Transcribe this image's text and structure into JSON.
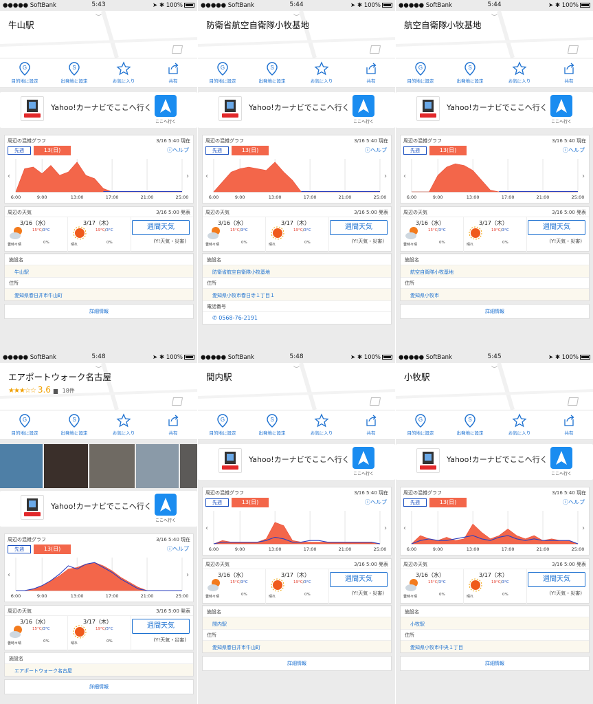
{
  "shared": {
    "status": {
      "carrier": "●●●●● SoftBank",
      "battery": "100%"
    },
    "actions": {
      "dest": "目的地に設定",
      "origin": "出発地に設定",
      "fav": "お気に入り",
      "share": "共有"
    },
    "navi": {
      "text": "Yahoo!カーナビでここへ行く",
      "go": "ここへ行く"
    },
    "congestion": {
      "title": "周辺の混雑グラフ",
      "timestamp": "3/16 5:40 現在",
      "prev": "先週",
      "day": "13(日)",
      "help": "ヘルプ",
      "xticks": [
        "6:00",
        "9:00",
        "13:00",
        "17:00",
        "21:00",
        "25:00"
      ]
    },
    "weather": {
      "title": "周辺の天気",
      "timestamp": "3/16 5:00 発表",
      "d1": {
        "date": "3/16（水）",
        "hi": "15°C",
        "lo": "3°C",
        "cond": "曇時々晴",
        "pop": "0%"
      },
      "d2": {
        "date": "3/17（木）",
        "hi": "19°C",
        "lo": "3°C",
        "cond": "晴れ",
        "pop": "0%"
      },
      "week_button": "週間天気",
      "week_sub": "(Y!天気・災害)"
    },
    "info": {
      "facility": "施設名",
      "address": "住所",
      "phone": "電話番号"
    },
    "detail_link": "詳細情報"
  },
  "panels": [
    {
      "time": "5:43",
      "title": "牛山駅",
      "facility": "牛山駅",
      "address": "愛知県春日井市牛山町"
    },
    {
      "time": "5:44",
      "title": "防衛省航空自衛隊小牧基地",
      "facility": "防衛省航空自衛隊小牧基地",
      "address": "愛知県小牧市春日寺１丁目１",
      "phone": "0568-76-2191"
    },
    {
      "time": "5:44",
      "title": "航空自衛隊小牧基地",
      "facility": "航空自衛隊小牧基地",
      "address": "愛知県小牧市"
    },
    {
      "time": "5:48",
      "title": "エアポートウォーク名古屋",
      "rating_stars": "★★★☆☆",
      "rating_score": "3.6",
      "reviews": "18件",
      "facility": "エアポートウォーク名古屋",
      "address": ""
    },
    {
      "time": "5:48",
      "title": "間内駅",
      "facility": "間内駅",
      "address": "愛知県春日井市牛山町"
    },
    {
      "time": "5:45",
      "title": "小牧駅",
      "facility": "小牧駅",
      "address": "愛知県小牧市中央１丁目"
    }
  ],
  "chart_data": [
    {
      "type": "area",
      "panel": "牛山駅",
      "x": [
        "6:00",
        "7:00",
        "8:00",
        "9:00",
        "10:00",
        "11:00",
        "12:00",
        "13:00",
        "14:00",
        "15:00",
        "16:00",
        "17:00",
        "18:00",
        "19:00",
        "20:00",
        "21:00",
        "22:00",
        "23:00",
        "24:00",
        "25:00"
      ],
      "series": [
        {
          "values": [
            0,
            28,
            30,
            22,
            32,
            20,
            24,
            36,
            20,
            16,
            4,
            0,
            0,
            0,
            0,
            0,
            0,
            0,
            0,
            0
          ]
        }
      ],
      "ylim": [
        0,
        40
      ]
    },
    {
      "type": "area",
      "panel": "防衛省航空自衛隊小牧基地",
      "x": [
        "6:00",
        "7:00",
        "8:00",
        "9:00",
        "10:00",
        "11:00",
        "12:00",
        "13:00",
        "14:00",
        "15:00",
        "16:00",
        "17:00",
        "18:00",
        "19:00",
        "20:00",
        "21:00",
        "22:00",
        "23:00",
        "24:00",
        "25:00"
      ],
      "series": [
        {
          "values": [
            0,
            12,
            24,
            28,
            30,
            28,
            26,
            36,
            24,
            14,
            0,
            0,
            0,
            0,
            0,
            0,
            0,
            0,
            0,
            0
          ]
        }
      ],
      "ylim": [
        0,
        40
      ]
    },
    {
      "type": "area",
      "panel": "航空自衛隊小牧基地",
      "x": [
        "6:00",
        "7:00",
        "8:00",
        "9:00",
        "10:00",
        "11:00",
        "12:00",
        "13:00",
        "14:00",
        "15:00",
        "16:00",
        "17:00",
        "18:00",
        "19:00",
        "20:00",
        "21:00",
        "22:00",
        "23:00",
        "24:00",
        "25:00"
      ],
      "series": [
        {
          "values": [
            0,
            0,
            0,
            20,
            30,
            34,
            32,
            26,
            14,
            2,
            0,
            0,
            0,
            0,
            0,
            0,
            0,
            0,
            0,
            0
          ]
        }
      ],
      "ylim": [
        0,
        40
      ]
    },
    {
      "type": "area",
      "panel": "エアポートウォーク名古屋",
      "x": [
        "6:00",
        "7:00",
        "8:00",
        "9:00",
        "10:00",
        "11:00",
        "12:00",
        "13:00",
        "14:00",
        "15:00",
        "16:00",
        "17:00",
        "18:00",
        "19:00",
        "20:00",
        "21:00",
        "22:00",
        "23:00",
        "24:00",
        "25:00"
      ],
      "series": [
        {
          "values": [
            0,
            0,
            2,
            6,
            12,
            18,
            26,
            28,
            32,
            34,
            30,
            24,
            16,
            10,
            4,
            0,
            0,
            0,
            0,
            0
          ]
        },
        {
          "values": [
            0,
            0,
            2,
            6,
            12,
            20,
            30,
            26,
            32,
            34,
            28,
            22,
            14,
            8,
            2,
            0,
            0,
            0,
            0,
            0
          ]
        }
      ],
      "ylim": [
        0,
        40
      ]
    },
    {
      "type": "area",
      "panel": "間内駅",
      "x": [
        "6:00",
        "7:00",
        "8:00",
        "9:00",
        "10:00",
        "11:00",
        "12:00",
        "13:00",
        "14:00",
        "15:00",
        "16:00",
        "17:00",
        "18:00",
        "19:00",
        "20:00",
        "21:00",
        "22:00",
        "23:00",
        "24:00",
        "25:00"
      ],
      "series": [
        {
          "values": [
            0,
            4,
            2,
            2,
            2,
            2,
            6,
            26,
            22,
            4,
            2,
            2,
            2,
            2,
            2,
            2,
            2,
            2,
            2,
            0
          ]
        },
        {
          "values": [
            0,
            2,
            2,
            2,
            2,
            2,
            4,
            8,
            6,
            2,
            2,
            4,
            4,
            2,
            2,
            2,
            2,
            2,
            2,
            0
          ]
        }
      ],
      "ylim": [
        0,
        40
      ]
    },
    {
      "type": "area",
      "panel": "小牧駅",
      "x": [
        "6:00",
        "7:00",
        "8:00",
        "9:00",
        "10:00",
        "11:00",
        "12:00",
        "13:00",
        "14:00",
        "15:00",
        "16:00",
        "17:00",
        "18:00",
        "19:00",
        "20:00",
        "21:00",
        "22:00",
        "23:00",
        "24:00",
        "25:00"
      ],
      "series": [
        {
          "values": [
            0,
            10,
            6,
            4,
            8,
            4,
            6,
            24,
            14,
            6,
            10,
            18,
            10,
            6,
            10,
            4,
            6,
            4,
            4,
            0
          ]
        },
        {
          "values": [
            0,
            4,
            6,
            4,
            4,
            6,
            8,
            10,
            6,
            4,
            8,
            10,
            6,
            4,
            6,
            4,
            4,
            4,
            4,
            0
          ]
        }
      ],
      "ylim": [
        0,
        40
      ]
    }
  ]
}
